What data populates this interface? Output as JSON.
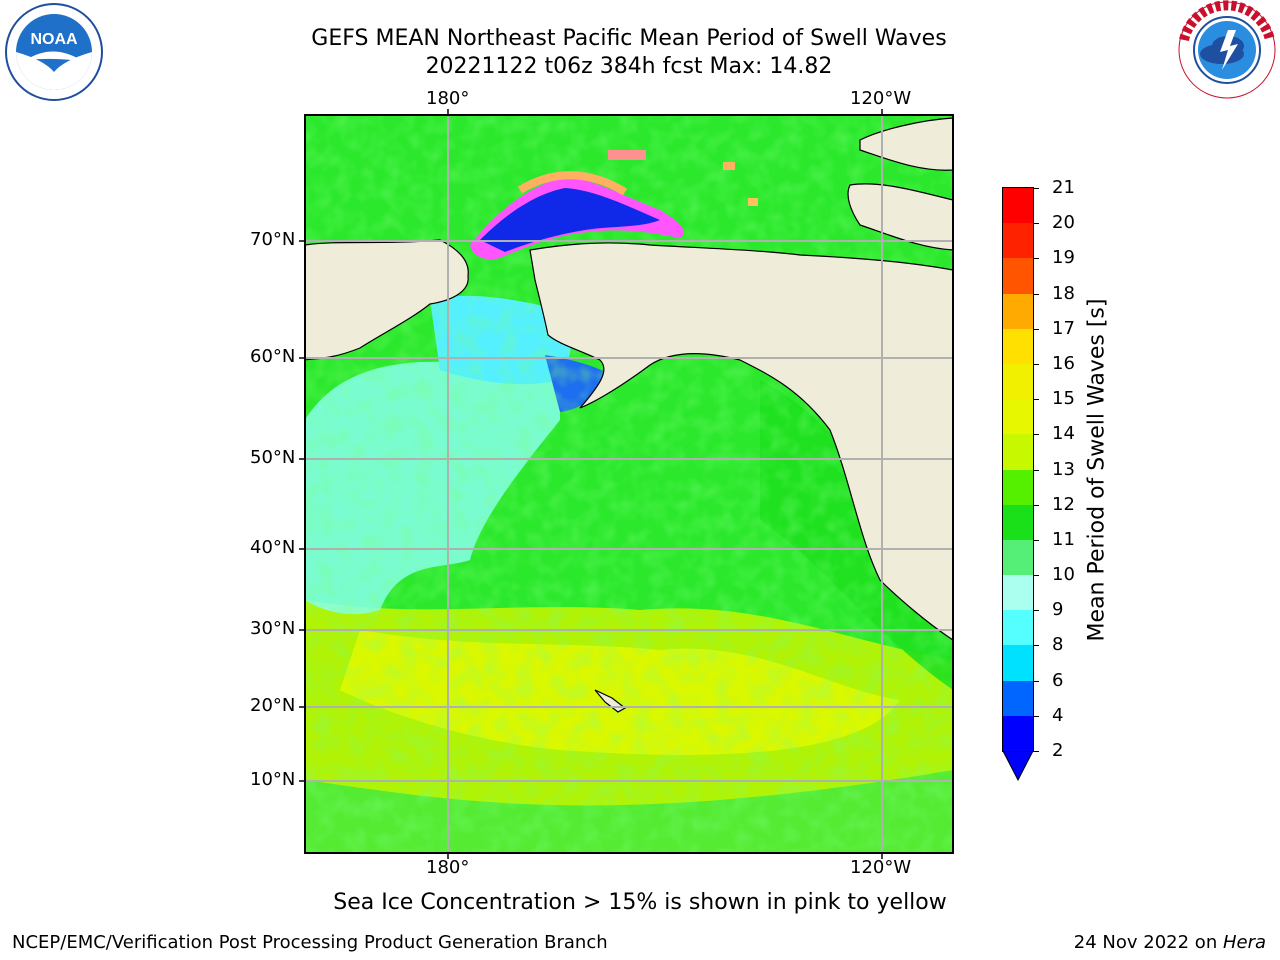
{
  "title_line1": "GEFS MEAN Northeast Pacific Mean Period of Swell Waves",
  "title_line2": "20221122 t06z 384h fcst   Max: 14.82",
  "lon_labels": [
    "180°",
    "120°W"
  ],
  "lat_labels": [
    "70°N",
    "60°N",
    "50°N",
    "40°N",
    "30°N",
    "20°N",
    "10°N"
  ],
  "colorbar": {
    "label": "Mean Period of Swell Waves [s]",
    "ticks": [
      "21",
      "20",
      "19",
      "18",
      "17",
      "16",
      "15",
      "14",
      "13",
      "12",
      "11",
      "10",
      "9",
      "8",
      "6",
      "4",
      "2"
    ],
    "colors": [
      "#ff0000",
      "#ff2200",
      "#ff5500",
      "#ff8000",
      "#ffaa00",
      "#ffe000",
      "#f0f000",
      "#e6f700",
      "#c8f800",
      "#9ef500",
      "#55f000",
      "#1ae01a",
      "#55ee77",
      "#aaffee",
      "#55ffff",
      "#00ffff",
      "#00e0ff",
      "#0066ff",
      "#0000ff"
    ],
    "under_color": "#0000ff"
  },
  "note": "Sea Ice Concentration > 15% is shown in pink to yellow",
  "footer_left": "NCEP/EMC/Verification Post Processing Product Generation Branch",
  "footer_date": "24 Nov 2022 on ",
  "footer_machine": "Hera",
  "logos": {
    "left_logo_text": "NOAA",
    "right_logo_text": "NATIONAL WEATHER SERVICE"
  }
}
